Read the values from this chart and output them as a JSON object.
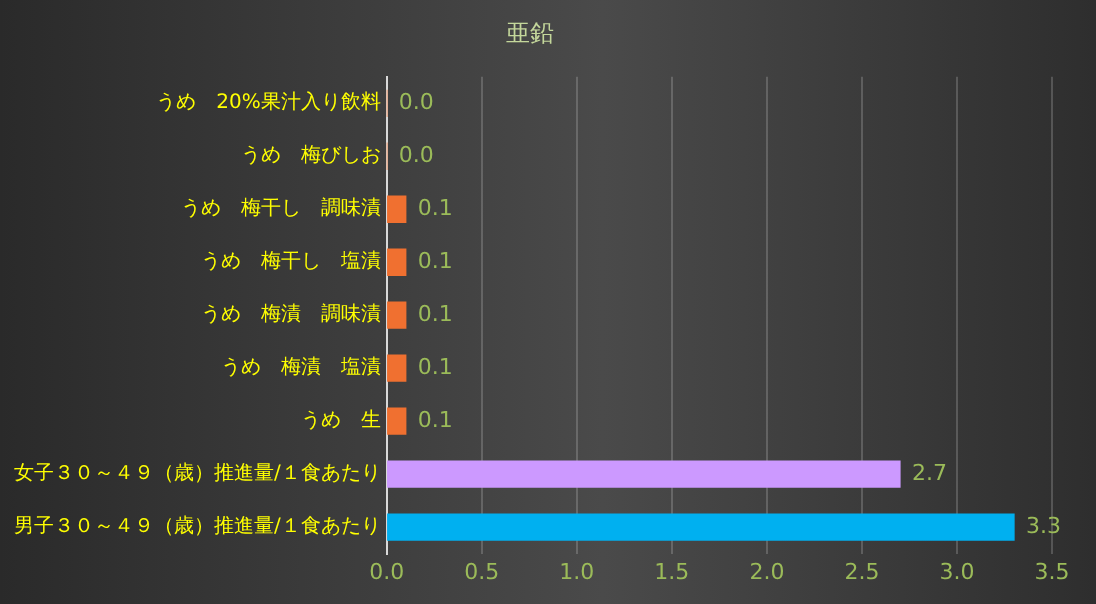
{
  "chart_data": {
    "type": "bar",
    "orientation": "horizontal",
    "title": "亜鉛",
    "categories": [
      "うめ　20%果汁入り飲料",
      "うめ　梅びしお",
      "うめ　梅干し　調味漬",
      "うめ　梅干し　塩漬",
      "うめ　梅漬　調味漬",
      "うめ　梅漬　塩漬",
      "うめ　生",
      "女子３０～４９（歳）推進量/１食あたり",
      "男子３０～４９（歳）推進量/１食あたり"
    ],
    "values": [
      0.0,
      0.0,
      0.1,
      0.1,
      0.1,
      0.1,
      0.1,
      2.7,
      3.3
    ],
    "colors": [
      "#f07030",
      "#f07030",
      "#f07030",
      "#f07030",
      "#f07030",
      "#f07030",
      "#f07030",
      "#cc99ff",
      "#00b0f0"
    ],
    "xlim": [
      0,
      3.5
    ],
    "xticks": [
      {
        "value": 0,
        "label": "0.0"
      },
      {
        "value": 0.5,
        "label": "0.5"
      },
      {
        "value": 1,
        "label": "1.0"
      },
      {
        "value": 1.5,
        "label": "1.5"
      },
      {
        "value": 2,
        "label": "2.0"
      },
      {
        "value": 2.5,
        "label": "2.5"
      },
      {
        "value": 3,
        "label": "3.0"
      },
      {
        "value": 3.5,
        "label": "3.5"
      }
    ],
    "value_labels": [
      "0.0",
      "0.0",
      "0.1",
      "0.1",
      "0.1",
      "0.1",
      "0.1",
      "2.7",
      "3.3"
    ],
    "grid": "x",
    "legend": false
  }
}
